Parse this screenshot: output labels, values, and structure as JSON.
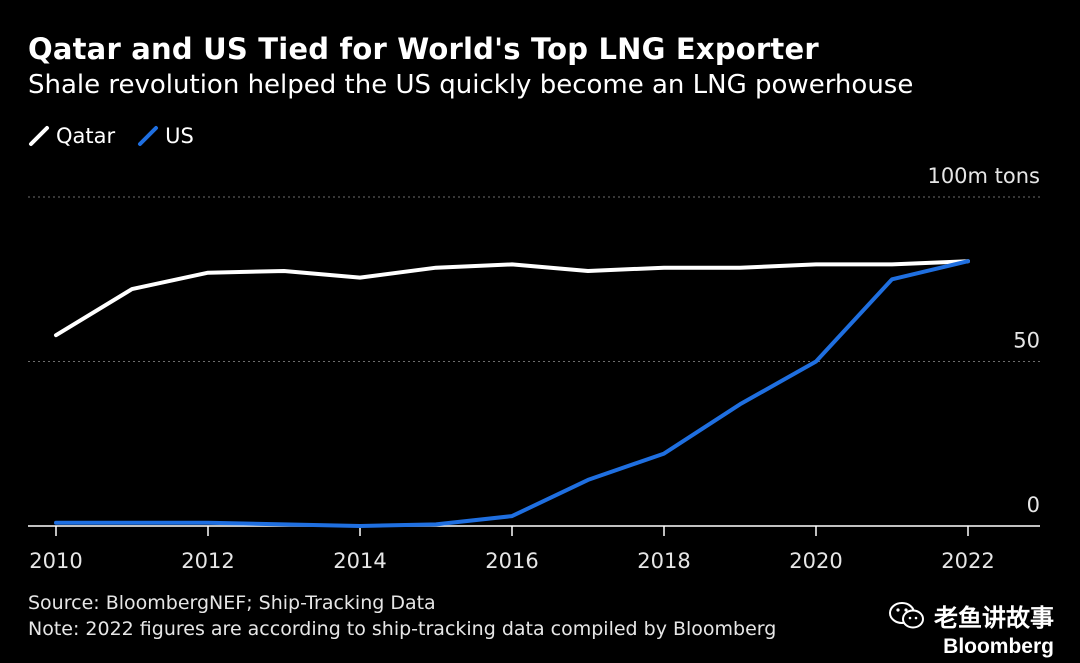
{
  "colors": {
    "background": "#000000",
    "qatar": "#ffffff",
    "us": "#1f6fe0",
    "grid": "#6e6e6e",
    "text": "#ffffff"
  },
  "chart_data": {
    "type": "line",
    "title": "Qatar and US Tied for World's Top LNG Exporter",
    "subtitle": "Shale revolution helped the US quickly become an LNG powerhouse",
    "x": [
      2010,
      2011,
      2012,
      2013,
      2014,
      2015,
      2016,
      2017,
      2018,
      2019,
      2020,
      2021,
      2022
    ],
    "series": [
      {
        "name": "Qatar",
        "color": "#ffffff",
        "values": [
          58,
          72,
          77,
          77.5,
          75.5,
          78.5,
          79.5,
          77.5,
          78.5,
          78.5,
          79.5,
          79.5,
          80.5
        ]
      },
      {
        "name": "US",
        "color": "#1f6fe0",
        "values": [
          1,
          1,
          1,
          0.5,
          0,
          0.5,
          3,
          14,
          22,
          37,
          50,
          75,
          80.5
        ]
      }
    ],
    "xticks": [
      "2010",
      "2012",
      "2014",
      "2016",
      "2018",
      "2020",
      "2022"
    ],
    "yticks": [
      {
        "value": 100,
        "label": "100m tons"
      },
      {
        "value": 50,
        "label": "50"
      },
      {
        "value": 0,
        "label": "0"
      }
    ],
    "ylim": [
      0,
      100
    ],
    "xlim": [
      2010,
      2022
    ],
    "grid": "dotted horizontal",
    "legend_placement": "top-left"
  },
  "footer": {
    "source": "Source: BloombergNEF; Ship-Tracking Data",
    "note": "Note: 2022 figures are according to ship-tracking data compiled by Bloomberg"
  },
  "watermark": {
    "text": "老鱼讲故事",
    "logo": "Bloomberg",
    "icon": "wechat-icon"
  }
}
